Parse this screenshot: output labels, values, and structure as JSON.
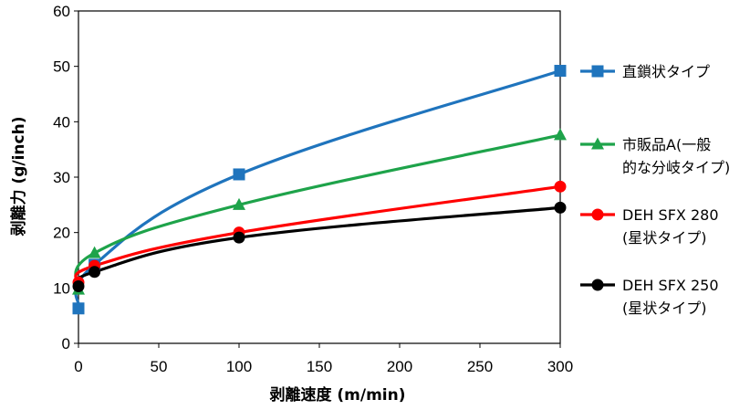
{
  "chart_data": {
    "type": "line",
    "xlabel": "剥離速度 (m/min)",
    "ylabel": "剥離力 (g/inch)",
    "xlim": [
      0,
      300
    ],
    "ylim": [
      0,
      60
    ],
    "xticks": [
      "0",
      "50",
      "100",
      "150",
      "200",
      "250",
      "300"
    ],
    "yticks": [
      "0",
      "10",
      "20",
      "30",
      "40",
      "50",
      "60"
    ],
    "grid": false,
    "legend_position": "right",
    "series": [
      {
        "name_lines": [
          "直鎖状タイプ"
        ],
        "color": "#1f74bd",
        "marker": "square",
        "x": [
          0,
          10,
          100,
          300
        ],
        "y": [
          6.3,
          14.2,
          30.5,
          49.2
        ]
      },
      {
        "name_lines": [
          "市販品A(一般",
          "的な分岐タイプ)"
        ],
        "color": "#1ea34a",
        "marker": "triangle",
        "x": [
          0,
          10,
          100,
          300
        ],
        "y": [
          9.7,
          16.3,
          25.0,
          37.6
        ]
      },
      {
        "name_lines": [
          "DEH SFX 280",
          "(星状タイプ)"
        ],
        "color": "#ff0000",
        "marker": "circle",
        "x": [
          0,
          10,
          100,
          300
        ],
        "y": [
          11.0,
          14.0,
          20.0,
          28.3
        ]
      },
      {
        "name_lines": [
          "DEH SFX 250",
          "(星状タイプ)"
        ],
        "color": "#000000",
        "marker": "circle",
        "x": [
          0,
          10,
          100,
          300
        ],
        "y": [
          10.3,
          12.9,
          19.1,
          24.5
        ]
      }
    ]
  }
}
